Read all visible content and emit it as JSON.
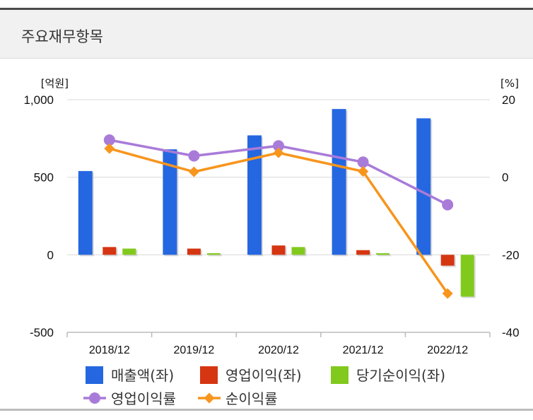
{
  "section": {
    "title": "주요재무항목"
  },
  "chart_data": {
    "type": "bar",
    "categories": [
      "2018/12",
      "2019/12",
      "2020/12",
      "2021/12",
      "2022/12"
    ],
    "left_axis": {
      "unit": "[억원]",
      "ylim": [
        -500,
        1000
      ],
      "ticks": [
        1000,
        500,
        0,
        -500
      ],
      "tick_labels": [
        "1,000",
        "500",
        "0",
        "-500"
      ]
    },
    "right_axis": {
      "unit": "[%]",
      "ylim": [
        -40,
        20
      ],
      "ticks": [
        20,
        0,
        -20,
        -40
      ],
      "tick_labels": [
        "20",
        "0",
        "-20",
        "-40"
      ]
    },
    "series": [
      {
        "name": "매출액(좌)",
        "type": "bar",
        "axis": "left",
        "color": "#2567e0",
        "values": [
          540,
          680,
          770,
          940,
          880
        ]
      },
      {
        "name": "영업이익(좌)",
        "type": "bar",
        "axis": "left",
        "color": "#d63512",
        "values": [
          50,
          40,
          60,
          30,
          -70
        ]
      },
      {
        "name": "당기순이익(좌)",
        "type": "bar",
        "axis": "left",
        "color": "#82c91e",
        "values": [
          40,
          10,
          50,
          10,
          -270
        ]
      },
      {
        "name": "영업이익률",
        "type": "line",
        "axis": "right",
        "color": "#a97bd9",
        "marker": "circle",
        "values": [
          9.6,
          5.5,
          8.1,
          3.9,
          -7.1
        ]
      },
      {
        "name": "순이익률",
        "type": "line",
        "axis": "right",
        "color": "#f7951d",
        "marker": "diamond",
        "values": [
          7.4,
          1.4,
          6.3,
          1.5,
          -30.0
        ]
      }
    ],
    "grid": true,
    "legend": "bottom"
  }
}
